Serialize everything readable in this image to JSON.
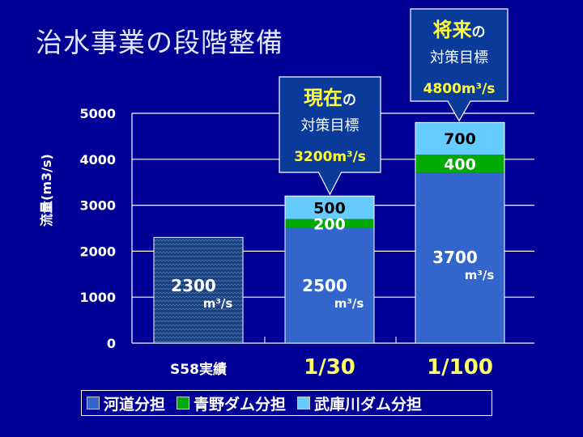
{
  "title": "治水事業の段階整備",
  "chart_data": {
    "type": "bar",
    "stacked": true,
    "ylabel": "流量(m3/s)",
    "ylim": [
      0,
      5000
    ],
    "yticks": [
      "0",
      "1000",
      "2000",
      "3000",
      "4000",
      "5000"
    ],
    "grid": true,
    "categories": [
      "S58実績",
      "1/30",
      "1/100"
    ],
    "series": [
      {
        "name": "河道分担",
        "color": "#3366cc",
        "values": [
          2300,
          2500,
          3700
        ]
      },
      {
        "name": "青野ダム分担",
        "color": "#00aa00",
        "values": [
          0,
          200,
          400
        ]
      },
      {
        "name": "武庫川ダム分担",
        "color": "#66ccff",
        "values": [
          0,
          500,
          700
        ]
      }
    ],
    "bar_labels": [
      {
        "main": "2300",
        "unit": "m3/s"
      },
      {
        "main": "2500",
        "unit": "m3/s",
        "green": "200",
        "light": "500"
      },
      {
        "main": "3700",
        "unit": "m3/s",
        "green": "400",
        "light": "700"
      }
    ],
    "callouts": [
      {
        "highlight": "現在",
        "suffix": "の",
        "line2": "対策目標",
        "value": "3200m3/s"
      },
      {
        "highlight": "将来",
        "suffix": "の",
        "line2": "対策目標",
        "value": "4800m3/s"
      }
    ],
    "legend_position": "bottom"
  }
}
